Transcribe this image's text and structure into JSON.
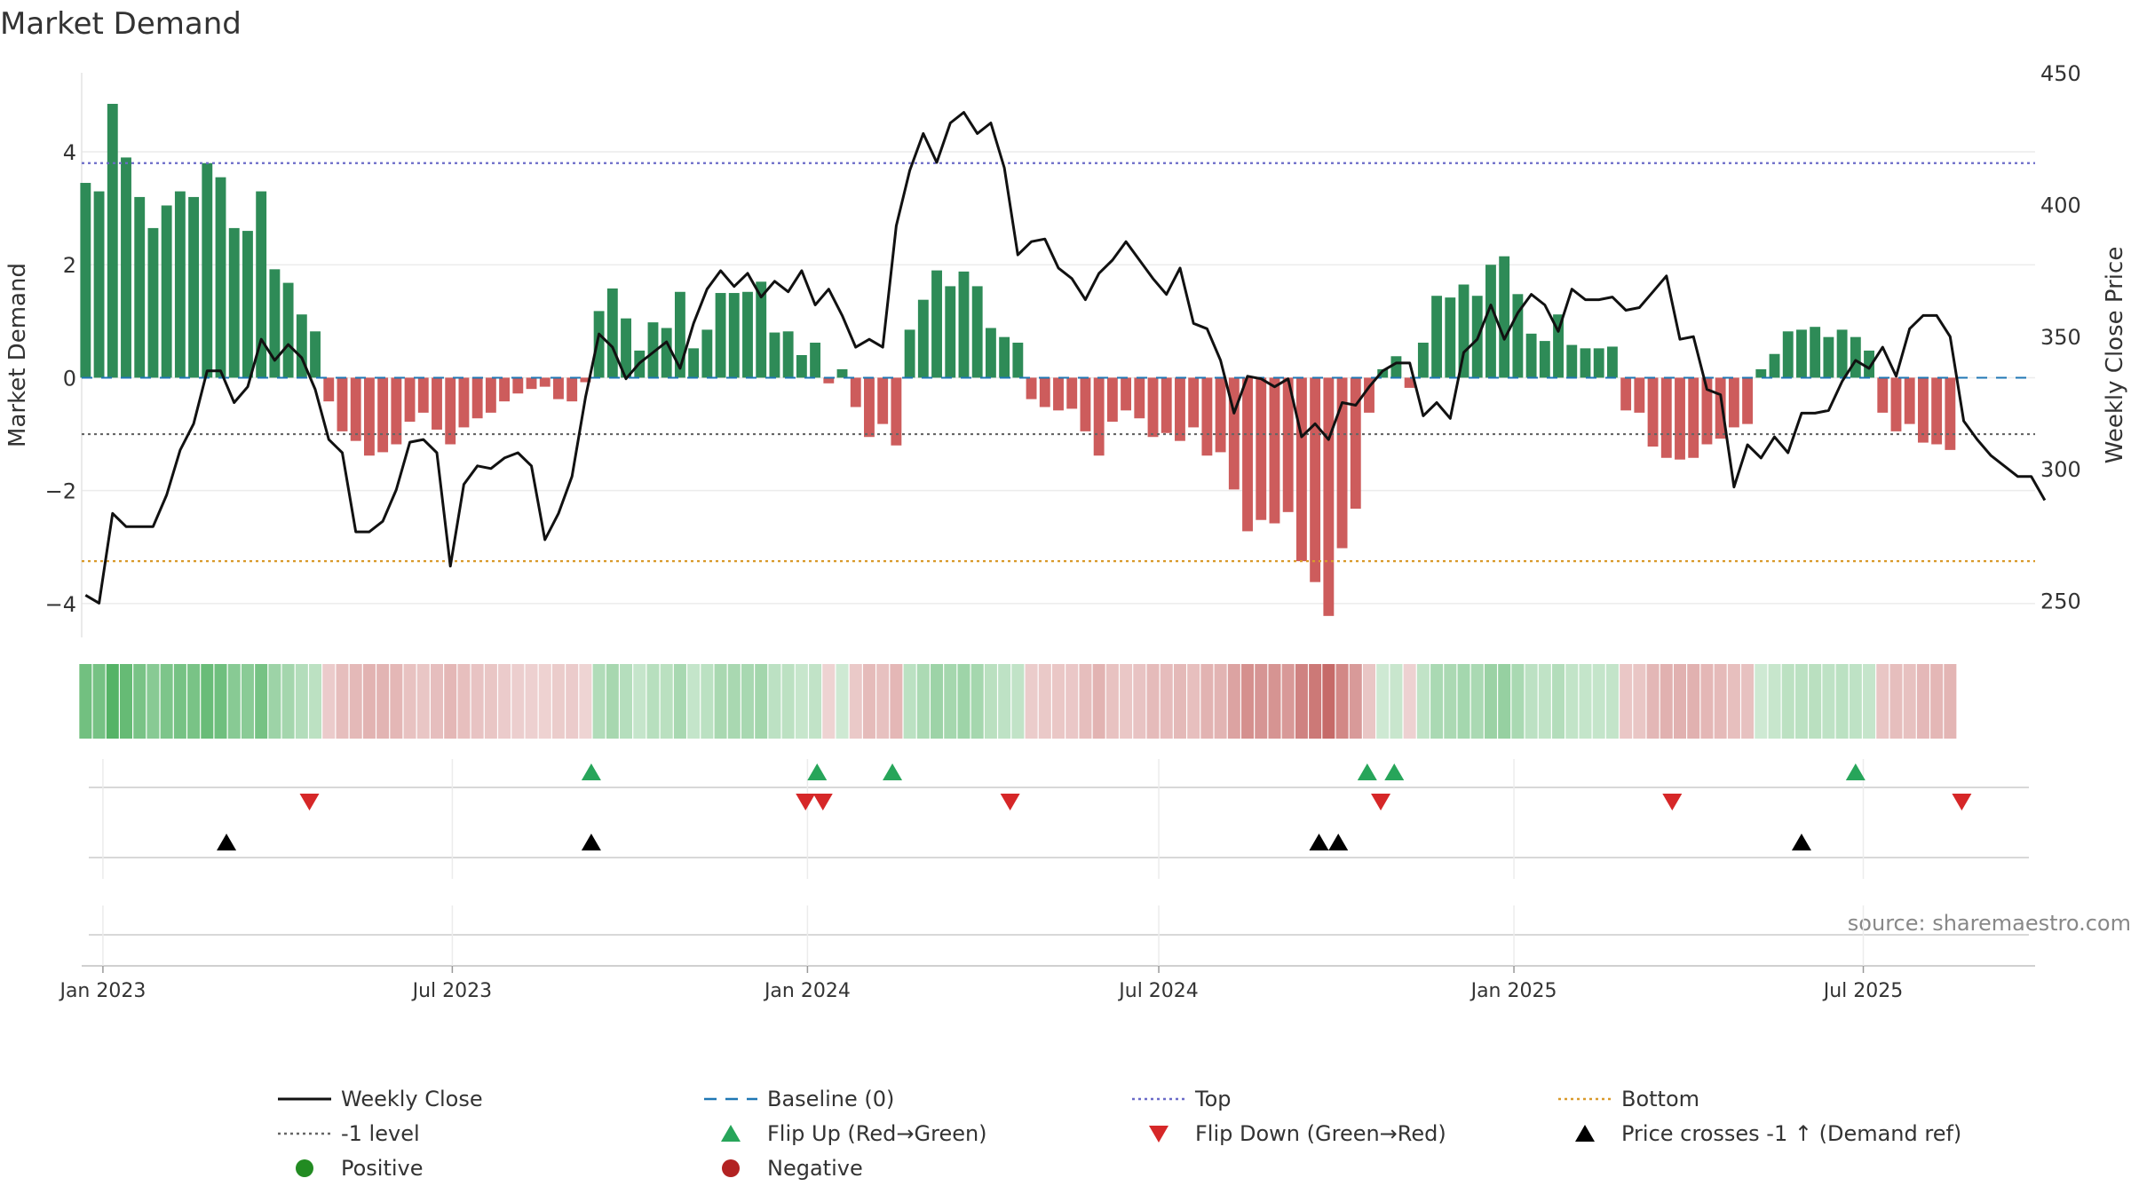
{
  "chart_data": {
    "type": "bar",
    "title": "Market Demand",
    "ylabel": "Market Demand",
    "y2label": "Weekly Close Price",
    "ylim": [
      -4.6,
      5.4
    ],
    "y2lim": [
      236,
      450
    ],
    "yticks": [
      4,
      2,
      0,
      -2,
      -4
    ],
    "ytick_labels": [
      "4",
      "2",
      "0",
      "−2",
      "−4"
    ],
    "y2ticks": [
      450,
      400,
      350,
      300,
      250
    ],
    "y2tick_labels": [
      "450",
      "400",
      "350",
      "300",
      "250"
    ],
    "x_range": [
      "2022-12-21",
      "2025-09-28"
    ],
    "x_ticks": [
      "2023-01-01",
      "2023-07-01",
      "2024-01-01",
      "2024-07-01",
      "2025-01-01",
      "2025-07-01"
    ],
    "x_tick_labels": [
      "Jan 2023",
      "Jul 2023",
      "Jan 2024",
      "Jul 2024",
      "Jan 2025",
      "Jul 2025"
    ],
    "start_date": "2022-12-23",
    "week_days": 7,
    "reference_lines": {
      "top": 3.8,
      "bottom": -3.25,
      "minus_one": -1.0,
      "baseline": 0
    },
    "demand": [
      3.45,
      3.3,
      4.85,
      3.9,
      3.2,
      2.65,
      3.05,
      3.3,
      3.2,
      3.8,
      3.55,
      2.65,
      2.6,
      3.3,
      1.92,
      1.68,
      1.12,
      0.82,
      -0.42,
      -0.95,
      -1.12,
      -1.38,
      -1.32,
      -1.18,
      -0.78,
      -0.62,
      -0.92,
      -1.18,
      -0.88,
      -0.72,
      -0.62,
      -0.42,
      -0.28,
      -0.2,
      -0.16,
      -0.38,
      -0.42,
      -0.08,
      1.18,
      1.58,
      1.05,
      0.48,
      0.98,
      0.88,
      1.52,
      0.52,
      0.85,
      1.5,
      1.5,
      1.52,
      1.7,
      0.8,
      0.82,
      0.4,
      0.62,
      -0.1,
      0.15,
      -0.52,
      -1.05,
      -0.82,
      -1.2,
      0.85,
      1.38,
      1.9,
      1.62,
      1.88,
      1.62,
      0.88,
      0.72,
      0.62,
      -0.38,
      -0.52,
      -0.58,
      -0.55,
      -0.95,
      -1.38,
      -0.78,
      -0.58,
      -0.72,
      -1.05,
      -0.98,
      -1.12,
      -0.88,
      -1.38,
      -1.32,
      -1.98,
      -2.72,
      -2.52,
      -2.58,
      -2.38,
      -3.25,
      -3.62,
      -4.22,
      -3.02,
      -2.32,
      -0.62,
      0.15,
      0.38,
      -0.18,
      0.62,
      1.45,
      1.42,
      1.65,
      1.45,
      2.0,
      2.15,
      1.48,
      0.78,
      0.65,
      1.12,
      0.58,
      0.52,
      0.52,
      0.55,
      -0.58,
      -0.62,
      -1.22,
      -1.42,
      -1.45,
      -1.42,
      -1.18,
      -1.08,
      -0.88,
      -0.82,
      0.15,
      0.42,
      0.82,
      0.85,
      0.9,
      0.72,
      0.85,
      0.72,
      0.48,
      -0.62,
      -0.95,
      -0.82,
      -1.15,
      -1.18,
      -1.28
    ],
    "close": [
      252,
      249,
      283,
      278,
      278,
      278,
      290,
      307,
      317,
      337,
      337,
      325,
      331,
      349,
      341,
      347,
      342,
      330,
      311,
      306,
      276,
      276,
      280,
      292,
      310,
      311,
      306,
      263,
      294,
      301,
      300,
      304,
      306,
      301,
      273,
      283,
      297,
      327,
      351,
      346,
      334,
      340,
      344,
      348,
      338,
      355,
      368,
      375,
      369,
      374,
      365,
      371,
      367,
      375,
      362,
      368,
      358,
      346,
      349,
      346,
      392,
      413,
      427,
      416,
      431,
      435,
      427,
      431,
      414,
      381,
      386,
      387,
      376,
      372,
      364,
      374,
      379,
      386,
      379,
      372,
      366,
      376,
      355,
      353,
      341,
      321,
      335,
      334,
      331,
      334,
      312,
      317,
      311,
      325,
      324,
      331,
      337,
      340,
      340,
      320,
      325,
      319,
      344,
      349,
      362,
      349,
      359,
      366,
      362,
      352,
      368,
      364,
      364,
      365,
      360,
      361,
      367,
      373,
      349,
      350,
      330,
      328,
      293,
      309,
      304,
      312,
      306,
      321,
      321,
      322,
      333,
      341,
      338,
      346,
      335,
      353,
      358,
      358,
      350,
      318,
      311,
      305,
      301,
      297,
      297,
      288
    ],
    "flip_up": [
      "2023-09-11",
      "2024-01-06",
      "2024-02-14",
      "2024-10-17",
      "2024-10-31",
      "2025-06-27"
    ],
    "flip_down": [
      "2023-04-18",
      "2023-12-31",
      "2024-01-09",
      "2024-04-15",
      "2024-10-24",
      "2025-03-24",
      "2025-08-21"
    ],
    "price_cross_up": [
      "2023-03-06",
      "2023-09-11",
      "2024-09-22",
      "2024-10-02",
      "2025-05-30"
    ],
    "annotation": "source: sharemaestro.com",
    "legend": {
      "position": "bottom",
      "items": [
        {
          "label": "Weekly Close",
          "marker": "line-black"
        },
        {
          "label": "Baseline (0)",
          "marker": "dash-blue"
        },
        {
          "label": "Top",
          "marker": "dot-purple"
        },
        {
          "label": "Bottom",
          "marker": "dot-orange"
        },
        {
          "label": "-1 level",
          "marker": "dot-gray"
        },
        {
          "label": "Flip Up (Red→Green)",
          "marker": "triangle-up-green"
        },
        {
          "label": "Flip Down (Green→Red)",
          "marker": "triangle-down-red"
        },
        {
          "label": "Price crosses -1 ↑ (Demand ref)",
          "marker": "triangle-up-black"
        },
        {
          "label": "Positive",
          "marker": "circle-green"
        },
        {
          "label": "Negative",
          "marker": "circle-red"
        }
      ]
    },
    "colors": {
      "positive": "#2e8b57",
      "negative": "#cd5c5c",
      "line": "#111111",
      "top": "#6b6bc8",
      "bottom": "#d99a2b",
      "minus_one": "#666666",
      "baseline": "#1f77b4",
      "flip_up": "#27a55a",
      "flip_down": "#d62728",
      "cross": "#000000",
      "legend_positive": "#228b22",
      "legend_negative": "#b22222",
      "heat_positive": "#4caf5e",
      "heat_negative": "#c05a58"
    }
  }
}
